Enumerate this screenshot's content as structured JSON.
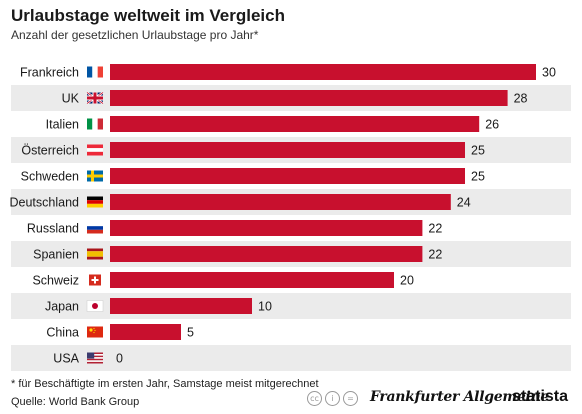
{
  "header": {
    "title": "Urlaubstage weltweit im Vergleich",
    "subtitle": "Anzahl der gesetzlichen Urlaubstage pro Jahr*"
  },
  "chart_data": {
    "type": "bar",
    "orientation": "horizontal",
    "title": "Urlaubstage weltweit im Vergleich",
    "subtitle": "Anzahl der gesetzlichen Urlaubstage pro Jahr*",
    "categories": [
      "Frankreich",
      "UK",
      "Italien",
      "Österreich",
      "Schweden",
      "Deutschland",
      "Russland",
      "Spanien",
      "Schweiz",
      "Japan",
      "China",
      "USA"
    ],
    "values": [
      30,
      28,
      26,
      25,
      25,
      24,
      22,
      22,
      20,
      10,
      5,
      0
    ],
    "flags": [
      "fr",
      "uk",
      "it",
      "at",
      "se",
      "de",
      "ru",
      "es",
      "ch",
      "jp",
      "cn",
      "us"
    ],
    "xlim": [
      0,
      30
    ],
    "bar_color": "#c8102e",
    "stripe_color": "#ebebeb",
    "data_labels": true,
    "grid": false
  },
  "footer": {
    "footnote": "* für Beschäftigte im ersten Jahr, Samstage meist mitgerechnet",
    "source": "Quelle: World Bank Group",
    "license_icons": [
      "cc-icon",
      "by-icon",
      "nd-icon"
    ],
    "publisher_logo": "Frankfurter Allgemeine",
    "brand_logo": "statista"
  }
}
